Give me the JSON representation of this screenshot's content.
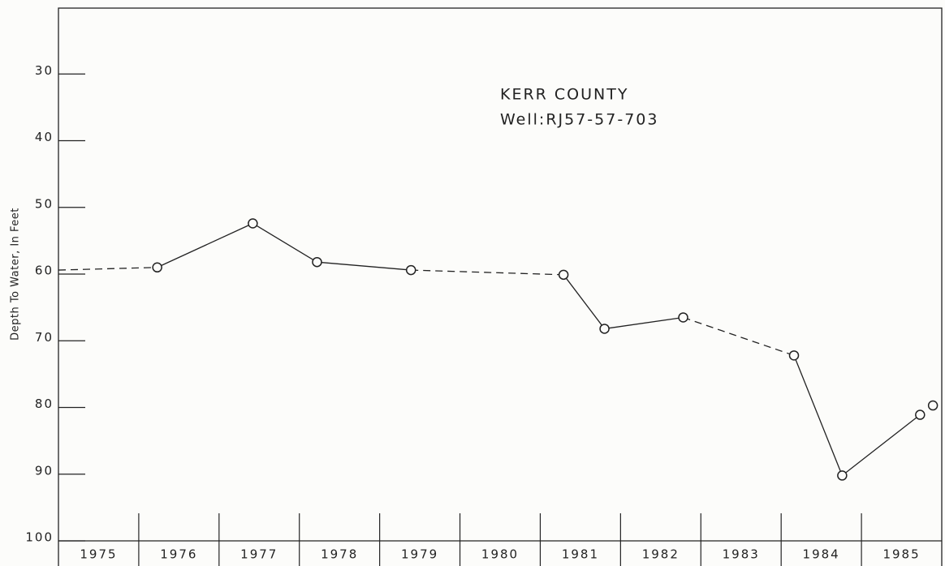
{
  "chart_data": {
    "type": "line",
    "ylabel": "Depth To Water, In Feet",
    "annotations": [
      "KERR COUNTY",
      "Well:RJ57-57-703"
    ],
    "xlabels": [
      "1975",
      "1976",
      "1977",
      "1978",
      "1979",
      "1980",
      "1981",
      "1982",
      "1983",
      "1984",
      "1985"
    ],
    "x": [
      1975.0,
      1976.23,
      1977.42,
      1978.22,
      1979.39,
      1981.29,
      1981.8,
      1982.78,
      1984.16,
      1984.76,
      1985.73,
      1985.89
    ],
    "values": [
      59.4,
      59.0,
      52.4,
      58.2,
      59.4,
      60.1,
      68.2,
      66.5,
      72.2,
      90.2,
      81.1,
      79.7
    ],
    "marked": [
      false,
      true,
      true,
      true,
      true,
      true,
      true,
      true,
      true,
      true,
      true,
      true
    ],
    "segment_styles": [
      "dashed",
      "solid",
      "solid",
      "solid",
      "dashed",
      "solid",
      "solid",
      "dashed",
      "solid",
      "solid",
      "none"
    ],
    "color": "#222222",
    "xlim": [
      1975,
      1986
    ],
    "xticks": [
      1976,
      1977,
      1978,
      1979,
      1980,
      1981,
      1982,
      1983,
      1984,
      1985
    ],
    "ylim": [
      20,
      100
    ],
    "y_inverted": true,
    "yticks": [
      30,
      40,
      50,
      60,
      70,
      80,
      90,
      100
    ]
  }
}
